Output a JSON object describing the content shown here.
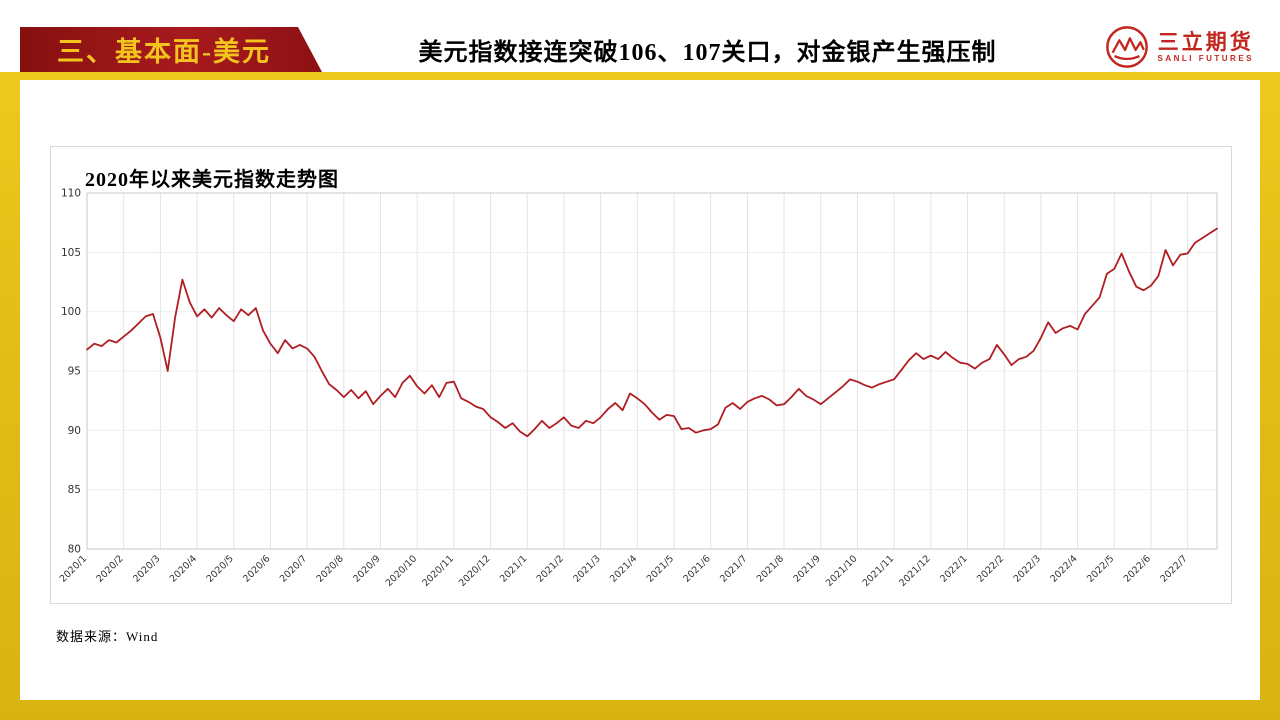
{
  "header": {
    "section_label": "三、基本面-美元",
    "title": "美元指数接连突破106、107关口，对金银产生强压制",
    "logo": {
      "name_cn": "三立期货",
      "name_en": "SANLI FUTURES"
    }
  },
  "colors": {
    "frame_gold": "#E3BE16",
    "banner_red": "#9A1418",
    "banner_text_gold": "#F2C41D",
    "logo_red": "#C1271F",
    "line_red": "#B01E23"
  },
  "chart_data": {
    "type": "line",
    "title": "2020年以来美元指数走势图",
    "xlabel": "",
    "ylabel": "",
    "ylim": [
      80,
      110
    ],
    "y_ticks": [
      80,
      85,
      90,
      95,
      100,
      105,
      110
    ],
    "grid": true,
    "legend": "none",
    "line_color": "#B01E23",
    "points_per_month": 5,
    "x_tick_labels": [
      "2020/1",
      "2020/2",
      "2020/3",
      "2020/4",
      "2020/5",
      "2020/6",
      "2020/7",
      "2020/8",
      "2020/9",
      "2020/10",
      "2020/11",
      "2020/12",
      "2021/1",
      "2021/2",
      "2021/3",
      "2021/4",
      "2021/5",
      "2021/6",
      "2021/7",
      "2021/8",
      "2021/9",
      "2021/10",
      "2021/11",
      "2021/12",
      "2022/1",
      "2022/2",
      "2022/3",
      "2022/4",
      "2022/5",
      "2022/6",
      "2022/7"
    ],
    "series": [
      {
        "name": "美元指数",
        "values": [
          96.8,
          97.3,
          97.1,
          97.6,
          97.4,
          97.9,
          98.4,
          99.0,
          99.6,
          99.8,
          97.8,
          95.0,
          99.5,
          102.7,
          100.8,
          99.6,
          100.2,
          99.5,
          100.3,
          99.7,
          99.2,
          100.2,
          99.7,
          100.3,
          98.4,
          97.3,
          96.5,
          97.6,
          96.9,
          97.2,
          96.9,
          96.2,
          95.0,
          93.9,
          93.4,
          92.8,
          93.4,
          92.7,
          93.3,
          92.2,
          92.9,
          93.5,
          92.8,
          94.0,
          94.6,
          93.7,
          93.1,
          93.8,
          92.8,
          94.0,
          94.1,
          92.7,
          92.4,
          92.0,
          91.8,
          91.1,
          90.7,
          90.2,
          90.6,
          89.9,
          89.5,
          90.1,
          90.8,
          90.2,
          90.6,
          91.1,
          90.4,
          90.2,
          90.8,
          90.6,
          91.1,
          91.8,
          92.3,
          91.7,
          93.1,
          92.7,
          92.2,
          91.5,
          90.9,
          91.3,
          91.2,
          90.1,
          90.2,
          89.8,
          90.0,
          90.1,
          90.5,
          91.9,
          92.3,
          91.8,
          92.4,
          92.7,
          92.9,
          92.6,
          92.1,
          92.2,
          92.8,
          93.5,
          92.9,
          92.6,
          92.2,
          92.7,
          93.2,
          93.7,
          94.3,
          94.1,
          93.8,
          93.6,
          93.9,
          94.1,
          94.3,
          95.1,
          95.9,
          96.5,
          96.0,
          96.3,
          96.0,
          96.6,
          96.1,
          95.7,
          95.6,
          95.2,
          95.7,
          96.0,
          97.2,
          96.4,
          95.5,
          96.0,
          96.2,
          96.7,
          97.8,
          99.1,
          98.2,
          98.6,
          98.8,
          98.5,
          99.8,
          100.5,
          101.2,
          103.2,
          103.6,
          104.9,
          103.4,
          102.1,
          101.8,
          102.2,
          103.0,
          105.2,
          103.9,
          104.8,
          104.9,
          105.8,
          106.2,
          106.6,
          107.0
        ]
      }
    ]
  },
  "footer": {
    "source": "数据来源：Wind"
  }
}
